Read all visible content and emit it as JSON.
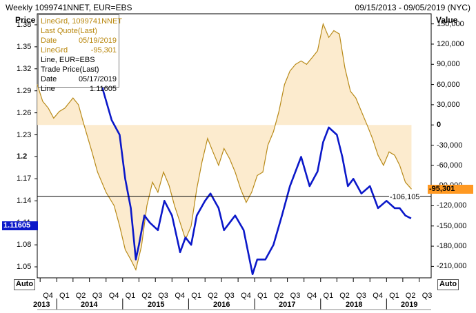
{
  "header": {
    "title": "Weekly 1099741NNET, EUR=EBS",
    "date_range": "09/15/2013 - 09/05/2019 (NYC)"
  },
  "axes": {
    "left_title": "Price",
    "right_title": "Value",
    "auto_label": "Auto"
  },
  "tooltip": {
    "rows": [
      {
        "label": "LineGrd, 1099741NNET",
        "value": "",
        "color": "orange"
      },
      {
        "label": "Last Quote(Last)",
        "value": "",
        "color": "orange"
      },
      {
        "label": "Date",
        "value": "05/19/2019",
        "color": "orange"
      },
      {
        "label": "LineGrd",
        "value": "-95,301",
        "color": "orange"
      },
      {
        "label": "Line, EUR=EBS",
        "value": "",
        "color": "black"
      },
      {
        "label": "Trade Price(Last)",
        "value": "",
        "color": "black"
      },
      {
        "label": "Date",
        "value": "05/17/2019",
        "color": "black"
      },
      {
        "label": "Line",
        "value": "1.11605",
        "color": "black"
      }
    ]
  },
  "tags": {
    "price_last": "1.11605",
    "value_last": "-95,301",
    "hline_value": "-106,105"
  },
  "colors": {
    "eur_line": "#0b18c9",
    "net_line": "#b88a18",
    "net_fill": "#fbe7c6",
    "value_tag": "#ff9922"
  },
  "chart_data": {
    "type": "line",
    "title": "Weekly 1099741NNET, EUR=EBS",
    "x_range": [
      "2013-09-15",
      "2019-09-05"
    ],
    "quarters": [
      "Q4",
      "Q1",
      "Q2",
      "Q3",
      "Q4",
      "Q1",
      "Q2",
      "Q3",
      "Q4",
      "Q1",
      "Q2",
      "Q3",
      "Q4",
      "Q1",
      "Q2",
      "Q3",
      "Q4",
      "Q1",
      "Q2",
      "Q3",
      "Q4",
      "Q1",
      "Q2",
      "Q3"
    ],
    "years": [
      "2013",
      "2014",
      "2015",
      "2016",
      "2017",
      "2018",
      "2019"
    ],
    "left_axis": {
      "label": "Price",
      "ylim": [
        1.035,
        1.395
      ],
      "ticks": [
        "1.38",
        "1.35",
        "1.32",
        "1.29",
        "1.26",
        "1.23",
        "1.2",
        "1.17",
        "1.14",
        "1.11",
        "1.08",
        "1.05"
      ]
    },
    "right_axis": {
      "label": "Value",
      "ylim": [
        -227000,
        165000
      ],
      "ticks": [
        "150,000",
        "120,000",
        "90,000",
        "60,000",
        "30,000",
        "0",
        "-30,000",
        "-60,000",
        "-90,000",
        "-120,000",
        "-150,000",
        "-180,000",
        "-210,000"
      ]
    },
    "horizontal_line": {
      "axis": "right",
      "value": -106105
    },
    "series": [
      {
        "name": "EUR=EBS",
        "axis": "left",
        "points": [
          [
            "2014-06-15",
            1.36
          ],
          [
            "2014-08-01",
            1.34
          ],
          [
            "2014-09-15",
            1.29
          ],
          [
            "2014-11-01",
            1.25
          ],
          [
            "2014-12-15",
            1.23
          ],
          [
            "2015-01-15",
            1.17
          ],
          [
            "2015-02-15",
            1.13
          ],
          [
            "2015-03-15",
            1.06
          ],
          [
            "2015-04-01",
            1.08
          ],
          [
            "2015-05-01",
            1.12
          ],
          [
            "2015-06-01",
            1.11
          ],
          [
            "2015-07-15",
            1.1
          ],
          [
            "2015-08-20",
            1.14
          ],
          [
            "2015-10-01",
            1.12
          ],
          [
            "2015-11-15",
            1.07
          ],
          [
            "2015-12-15",
            1.09
          ],
          [
            "2016-01-15",
            1.08
          ],
          [
            "2016-02-15",
            1.12
          ],
          [
            "2016-04-01",
            1.14
          ],
          [
            "2016-05-01",
            1.15
          ],
          [
            "2016-06-15",
            1.13
          ],
          [
            "2016-07-15",
            1.1
          ],
          [
            "2016-09-15",
            1.12
          ],
          [
            "2016-11-01",
            1.1
          ],
          [
            "2016-12-20",
            1.04
          ],
          [
            "2017-01-15",
            1.06
          ],
          [
            "2017-03-01",
            1.06
          ],
          [
            "2017-04-15",
            1.08
          ],
          [
            "2017-06-01",
            1.12
          ],
          [
            "2017-07-15",
            1.16
          ],
          [
            "2017-08-15",
            1.18
          ],
          [
            "2017-09-15",
            1.2
          ],
          [
            "2017-11-01",
            1.16
          ],
          [
            "2017-12-15",
            1.18
          ],
          [
            "2018-01-15",
            1.22
          ],
          [
            "2018-02-15",
            1.24
          ],
          [
            "2018-04-01",
            1.23
          ],
          [
            "2018-05-01",
            1.2
          ],
          [
            "2018-06-01",
            1.16
          ],
          [
            "2018-07-01",
            1.17
          ],
          [
            "2018-08-15",
            1.15
          ],
          [
            "2018-10-01",
            1.16
          ],
          [
            "2018-11-15",
            1.13
          ],
          [
            "2019-01-01",
            1.14
          ],
          [
            "2019-02-15",
            1.13
          ],
          [
            "2019-03-15",
            1.13
          ],
          [
            "2019-04-15",
            1.12
          ],
          [
            "2019-05-17",
            1.116
          ]
        ]
      },
      {
        "name": "1099741NNET",
        "axis": "right",
        "points": [
          [
            "2013-09-15",
            60000
          ],
          [
            "2013-10-15",
            35000
          ],
          [
            "2013-11-15",
            25000
          ],
          [
            "2013-12-15",
            10000
          ],
          [
            "2014-01-15",
            20000
          ],
          [
            "2014-02-15",
            25000
          ],
          [
            "2014-04-01",
            40000
          ],
          [
            "2014-05-01",
            30000
          ],
          [
            "2014-06-01",
            0
          ],
          [
            "2014-07-15",
            -40000
          ],
          [
            "2014-08-15",
            -70000
          ],
          [
            "2014-10-01",
            -100000
          ],
          [
            "2014-11-15",
            -120000
          ],
          [
            "2014-12-15",
            -150000
          ],
          [
            "2015-01-15",
            -185000
          ],
          [
            "2015-02-15",
            -200000
          ],
          [
            "2015-03-15",
            -215000
          ],
          [
            "2015-04-15",
            -180000
          ],
          [
            "2015-05-15",
            -120000
          ],
          [
            "2015-06-15",
            -85000
          ],
          [
            "2015-07-15",
            -100000
          ],
          [
            "2015-08-15",
            -70000
          ],
          [
            "2015-09-15",
            -90000
          ],
          [
            "2015-10-15",
            -120000
          ],
          [
            "2015-11-15",
            -145000
          ],
          [
            "2015-12-15",
            -170000
          ],
          [
            "2016-01-15",
            -150000
          ],
          [
            "2016-02-15",
            -95000
          ],
          [
            "2016-03-15",
            -55000
          ],
          [
            "2016-04-15",
            -20000
          ],
          [
            "2016-05-15",
            -40000
          ],
          [
            "2016-06-15",
            -60000
          ],
          [
            "2016-07-15",
            -35000
          ],
          [
            "2016-08-15",
            -50000
          ],
          [
            "2016-09-15",
            -70000
          ],
          [
            "2016-10-15",
            -95000
          ],
          [
            "2016-11-15",
            -115000
          ],
          [
            "2016-12-15",
            -100000
          ],
          [
            "2017-01-15",
            -75000
          ],
          [
            "2017-02-15",
            -70000
          ],
          [
            "2017-03-15",
            -30000
          ],
          [
            "2017-04-15",
            -10000
          ],
          [
            "2017-05-15",
            20000
          ],
          [
            "2017-06-15",
            60000
          ],
          [
            "2017-07-15",
            80000
          ],
          [
            "2017-08-15",
            90000
          ],
          [
            "2017-09-15",
            95000
          ],
          [
            "2017-10-15",
            90000
          ],
          [
            "2017-11-15",
            100000
          ],
          [
            "2017-12-15",
            110000
          ],
          [
            "2018-01-15",
            150000
          ],
          [
            "2018-02-15",
            130000
          ],
          [
            "2018-03-15",
            140000
          ],
          [
            "2018-04-15",
            135000
          ],
          [
            "2018-05-15",
            85000
          ],
          [
            "2018-06-15",
            50000
          ],
          [
            "2018-07-15",
            40000
          ],
          [
            "2018-08-15",
            20000
          ],
          [
            "2018-09-15",
            0
          ],
          [
            "2018-10-15",
            -20000
          ],
          [
            "2018-11-15",
            -45000
          ],
          [
            "2018-12-15",
            -60000
          ],
          [
            "2019-01-15",
            -40000
          ],
          [
            "2019-02-15",
            -45000
          ],
          [
            "2019-03-15",
            -60000
          ],
          [
            "2019-04-15",
            -85000
          ],
          [
            "2019-05-19",
            -95301
          ]
        ]
      }
    ]
  }
}
